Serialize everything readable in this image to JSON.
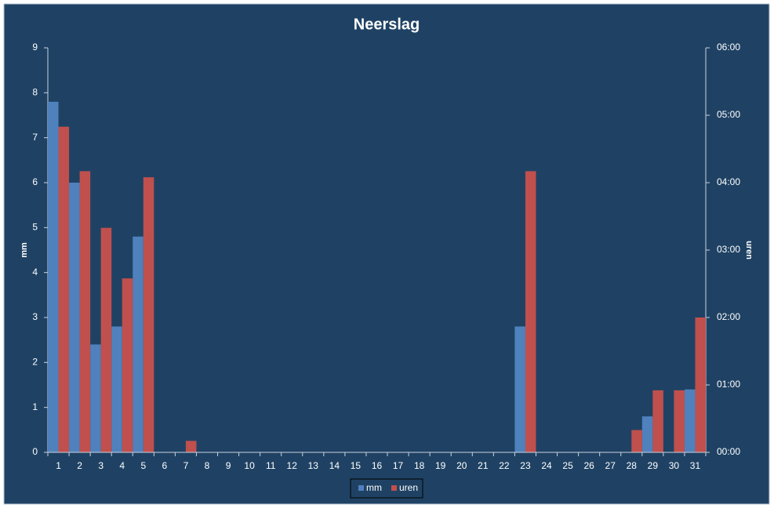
{
  "chart_data": {
    "type": "bar",
    "title": "Neerslag",
    "y_label": "mm",
    "y2_label": "uren",
    "categories": [
      "1",
      "2",
      "3",
      "4",
      "5",
      "6",
      "7",
      "8",
      "9",
      "10",
      "11",
      "12",
      "13",
      "14",
      "15",
      "16",
      "17",
      "18",
      "19",
      "20",
      "21",
      "22",
      "23",
      "24",
      "25",
      "26",
      "27",
      "28",
      "29",
      "30",
      "31"
    ],
    "series": [
      {
        "name": "mm",
        "color": "#4f81bd",
        "values": [
          7.8,
          6.0,
          2.4,
          2.8,
          4.8,
          0,
          0,
          0,
          0,
          0,
          0,
          0,
          0,
          0,
          0,
          0,
          0,
          0,
          0,
          0,
          0,
          0,
          2.8,
          0,
          0,
          0,
          0,
          0,
          0.8,
          0,
          1.4
        ]
      },
      {
        "name": "uren",
        "color": "#c0504d",
        "axis": "y2",
        "values": [
          4.83,
          4.17,
          3.33,
          2.58,
          4.08,
          0,
          0.17,
          0,
          0,
          0,
          0,
          0,
          0,
          0,
          0,
          0,
          0,
          0,
          0,
          0,
          0,
          0,
          4.17,
          0,
          0,
          0,
          0,
          0.33,
          0.92,
          0.92,
          2.0
        ]
      }
    ],
    "ylim": [
      0,
      9
    ],
    "yticks": [
      0,
      1,
      2,
      3,
      4,
      5,
      6,
      7,
      8,
      9
    ],
    "y2lim": [
      0,
      6
    ],
    "y2ticks": [
      {
        "value": 0,
        "label": "00:00"
      },
      {
        "value": 1,
        "label": "01:00"
      },
      {
        "value": 2,
        "label": "02:00"
      },
      {
        "value": 3,
        "label": "03:00"
      },
      {
        "value": 4,
        "label": "04:00"
      },
      {
        "value": 5,
        "label": "05:00"
      },
      {
        "value": 6,
        "label": "06:00"
      }
    ],
    "legend": "bottom"
  }
}
